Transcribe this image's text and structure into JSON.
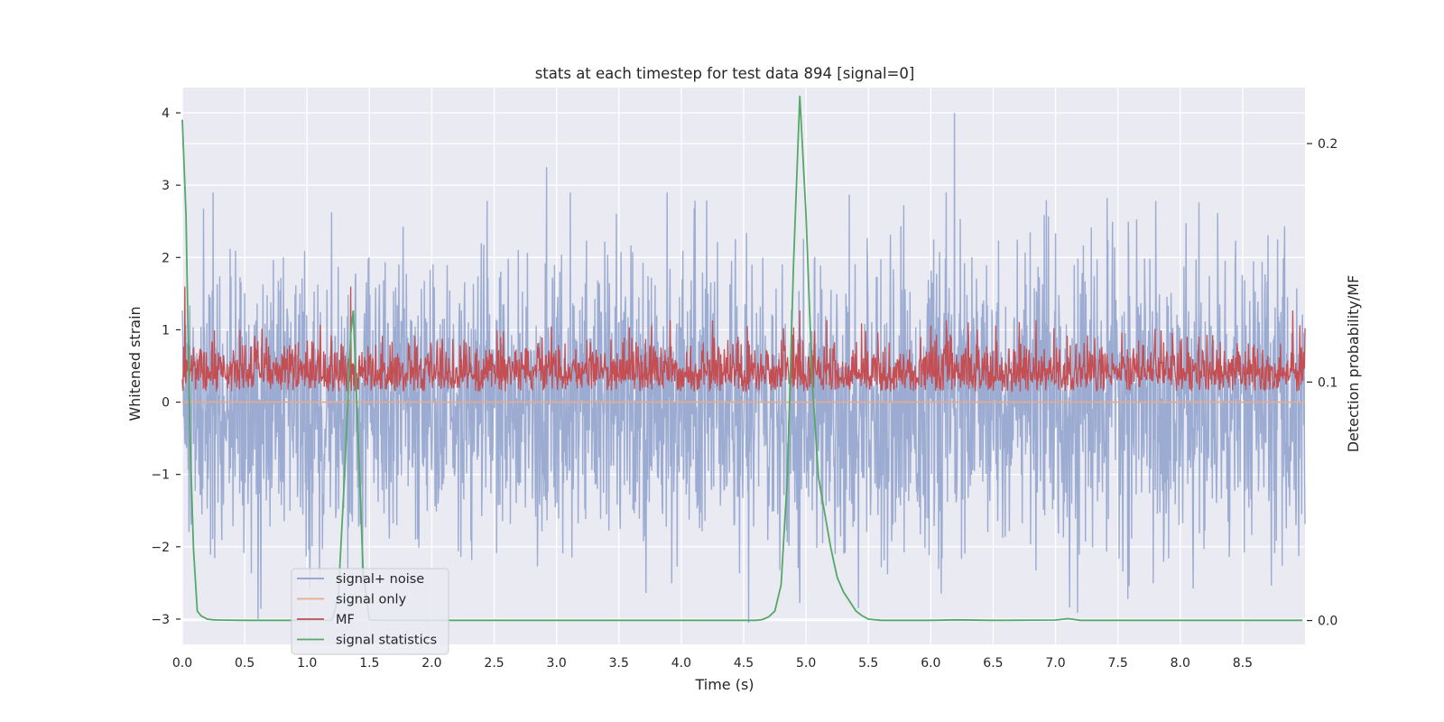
{
  "chart_data": {
    "type": "line",
    "title": "stats at each timestep for test data 894 [signal=0]",
    "xlabel": "Time (s)",
    "ylabel": "Whitened strain",
    "ylabel_right": "Detection probability/MF",
    "xlim": [
      0,
      9
    ],
    "ylim": [
      -3.35,
      4.35
    ],
    "ylim_right": [
      -0.01,
      0.2235
    ],
    "xticks": [
      "0.0",
      "0.5",
      "1.0",
      "1.5",
      "2.0",
      "2.5",
      "3.0",
      "3.5",
      "4.0",
      "4.5",
      "5.0",
      "5.5",
      "6.0",
      "6.5",
      "7.0",
      "7.5",
      "8.0",
      "8.5"
    ],
    "yticks": [
      "4",
      "3",
      "2",
      "1",
      "0",
      "−1",
      "−2",
      "−3"
    ],
    "yticks_right": [
      "0.2",
      "0.1",
      "0.0"
    ],
    "grid": true,
    "legend_location": "lower-left",
    "background": "#eaeaf2",
    "series": [
      {
        "name": "signal+ noise",
        "axis": "left",
        "color": "#8da0cb",
        "description": "whitened strain noise, approx. Gaussian, range about -3.1 to 4.0",
        "notable_peaks": [
          [
            2.92,
            3.25
          ],
          [
            6.19,
            4.0
          ],
          [
            4.54,
            -3.05
          ],
          [
            5.42,
            -2.85
          ]
        ]
      },
      {
        "name": "signal only",
        "axis": "left",
        "color": "#e9a98b",
        "x": [
          0,
          9
        ],
        "y": [
          0,
          0
        ]
      },
      {
        "name": "MF",
        "axis": "right",
        "color": "#c44e52",
        "description": "matched filter output, fluctuating about 0.1 to 0.12 on right axis",
        "baseline": 0.1,
        "notable_peaks": [
          [
            0.02,
            0.14
          ],
          [
            1.35,
            0.14
          ],
          [
            4.95,
            0.13
          ],
          [
            6.3,
            0.125
          ],
          [
            8.9,
            0.13
          ]
        ]
      },
      {
        "name": "signal statistics",
        "axis": "right",
        "color": "#55a868",
        "x": [
          0.0,
          0.03,
          0.06,
          0.09,
          0.12,
          0.15,
          0.2,
          0.25,
          0.3,
          0.5,
          1.0,
          1.2,
          1.25,
          1.3,
          1.35,
          1.37,
          1.4,
          1.45,
          1.5,
          1.6,
          2.0,
          3.0,
          4.0,
          4.5,
          4.6,
          4.65,
          4.7,
          4.75,
          4.8,
          4.85,
          4.9,
          4.95,
          5.0,
          5.05,
          5.1,
          5.15,
          5.2,
          5.25,
          5.3,
          5.35,
          5.4,
          5.45,
          5.5,
          5.6,
          6.0,
          6.2,
          6.5,
          7.0,
          7.1,
          7.2,
          8.0,
          8.98
        ],
        "y": [
          0.21,
          0.17,
          0.08,
          0.03,
          0.004,
          0.002,
          0.0006,
          0.0003,
          0.0002,
          0.0001,
          0.0001,
          0.0002,
          0.01,
          0.06,
          0.12,
          0.13,
          0.09,
          0.02,
          0.0003,
          0.0001,
          0.0001,
          0.0001,
          0.0001,
          0.0001,
          0.0001,
          0.0004,
          0.0015,
          0.004,
          0.015,
          0.06,
          0.15,
          0.22,
          0.17,
          0.1,
          0.06,
          0.045,
          0.03,
          0.018,
          0.012,
          0.008,
          0.004,
          0.002,
          0.0006,
          0.0001,
          0.0001,
          0.0003,
          0.0001,
          0.0002,
          0.0008,
          0.0001,
          0.0001,
          0.0001
        ]
      }
    ]
  }
}
